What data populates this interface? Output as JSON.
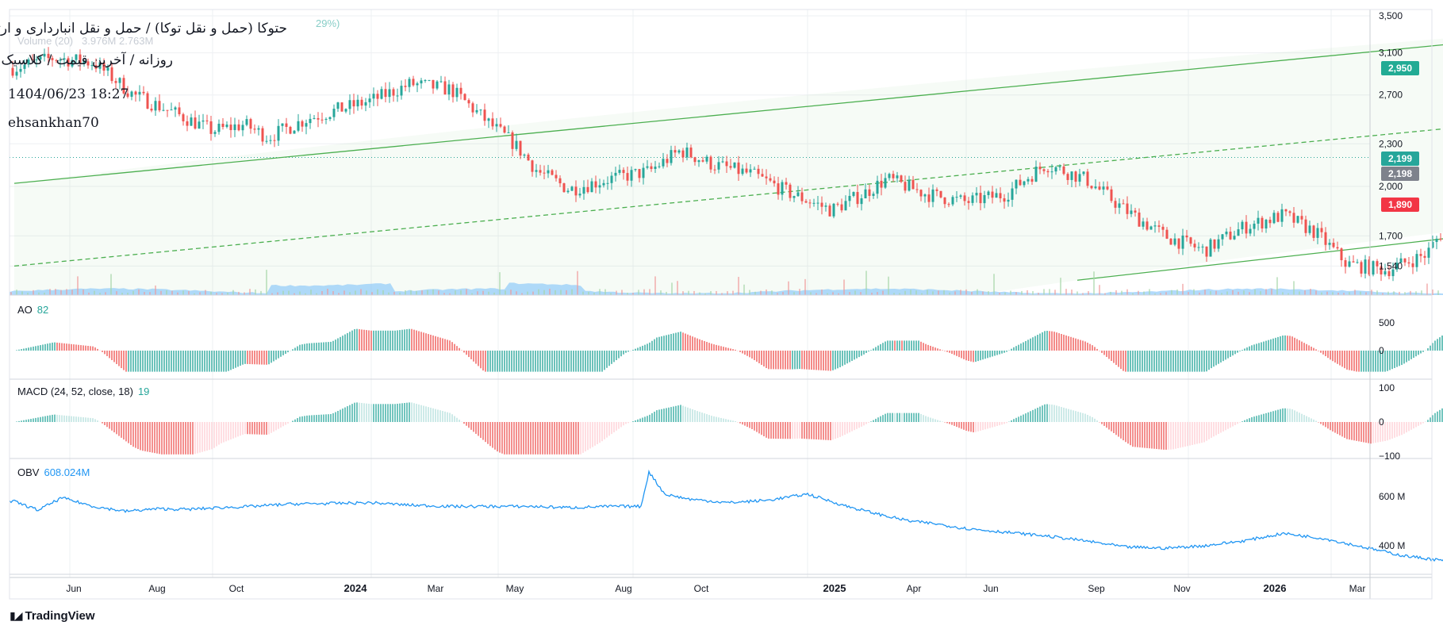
{
  "header": {
    "title": "حتوکا (حمل و نقل توکا) / حمل و نقل انبارداری و ارتباطات",
    "subtitle": "روزانه / آخرین قیمت / کلاسیک",
    "datetime": "1404/06/23 18:27",
    "author": "ehsankhan70",
    "ghost_change": "29%)",
    "ghost_volume_label": "Volume (20)",
    "ghost_volume_values": "3.976M  2.763M"
  },
  "branding": {
    "logo_text": "TradingView",
    "logo_icon": "tradingview-logo-icon"
  },
  "colors": {
    "up": "#26a69a",
    "down": "#ef5350",
    "channel": "#4caf50",
    "obv": "#2196f3",
    "target_zone": "#b2dfdb",
    "stop_zone": "#f8c8cc",
    "tag_target": "#22ab94",
    "tag_last": "#26a69a",
    "tag_prev": "#7e828c",
    "tag_stop": "#f23645"
  },
  "chart_data": [
    {
      "type": "candlestick",
      "title": "حتوکا (حمل و نقل توکا) / حمل و نقل انبارداری و ارتباطات",
      "price_axis": [
        1540,
        1700,
        2000,
        2300,
        2700,
        3100,
        3500
      ],
      "price_axis_labels": [
        "1,540",
        "1,700",
        "2,000",
        "2,300",
        "2,700",
        "3,100",
        "3,500"
      ],
      "time_axis": [
        "Jun",
        "Aug",
        "Oct",
        "2024",
        "Mar",
        "May",
        "Aug",
        "Oct",
        "2025",
        "Apr",
        "Jun",
        "Sep",
        "Nov",
        "2026",
        "Mar"
      ],
      "price_path": {
        "months": [
          0,
          0.5,
          1,
          1.5,
          2,
          2.5,
          2.9,
          3.2,
          3.7,
          4.5,
          5,
          5.5,
          6,
          6.3,
          6.6,
          7,
          7.5,
          8,
          8.4,
          8.8,
          9.3,
          9.8,
          10.3,
          10.7,
          11,
          11.5,
          12,
          12.5,
          13,
          13.5,
          14,
          14.5,
          15,
          15.5,
          16,
          16.4,
          16.8,
          17.3,
          17.8,
          18.2,
          18.7,
          19.2,
          19.6,
          20,
          20.2,
          20.5,
          20.8,
          21.1,
          21.4,
          21.7,
          22,
          22.2,
          22.5,
          22.8,
          23,
          23.3,
          23.6,
          23.9,
          24.1,
          24.4,
          24.8,
          25.2,
          25.6,
          26,
          26.4,
          26.7,
          27,
          27.2
        ],
        "values": [
          2950,
          3050,
          3000,
          2700,
          2550,
          2400,
          2450,
          2350,
          2500,
          2650,
          2800,
          2750,
          2450,
          2300,
          2100,
          1980,
          2050,
          2100,
          2250,
          2150,
          2080,
          1950,
          1850,
          1950,
          2050,
          1950,
          1900,
          1950,
          2150,
          2050,
          1850,
          1700,
          1620,
          1750,
          1820,
          1720,
          1550,
          1520,
          1600,
          1850,
          1950,
          2050,
          2000,
          1900,
          1800,
          1950,
          2100,
          2200,
          2280,
          2350,
          2450,
          2400,
          2300,
          2200,
          2100,
          1950,
          1850,
          2000,
          2100,
          2300,
          2450,
          2400,
          2350,
          2150,
          2200,
          2050,
          2000,
          2199
        ]
      },
      "last_price": 2199,
      "previous_close": 2198,
      "target": 2950,
      "stop": 1890,
      "price_tags": [
        "2,950",
        "2,199",
        "2,198",
        "1,890"
      ],
      "channel": {
        "upper": [
          [
            0,
            2020
          ],
          [
            22,
            3520
          ]
        ],
        "middle": [
          [
            0,
            1540
          ],
          [
            28,
            3100
          ]
        ],
        "lower": [
          [
            13.4,
            1470
          ],
          [
            28,
            2260
          ]
        ]
      },
      "volume_label": "Volume (20)"
    },
    {
      "type": "histogram",
      "name": "AO",
      "label": "AO",
      "value": 82,
      "value_label": "82",
      "y_axis_labels": [
        "500",
        "0"
      ]
    },
    {
      "type": "histogram",
      "name": "MACD (24, 52, close, 18)",
      "label": "MACD (24, 52, close, 18)",
      "value": 19,
      "value_label": "19",
      "y_axis_labels": [
        "100",
        "0",
        "−100"
      ]
    },
    {
      "type": "line",
      "name": "OBV",
      "label": "OBV",
      "value_label": "608.024M",
      "y_axis_labels": [
        "600 M",
        "400 M"
      ],
      "months": [
        0,
        0.3,
        0.6,
        1,
        1.4,
        1.8,
        2.2,
        2.6,
        3,
        3.5,
        4,
        4.5,
        5,
        5.5,
        6,
        6.5,
        7,
        7.5,
        7.9,
        8,
        8.2,
        8.5,
        9,
        9.5,
        10,
        10.5,
        11,
        11.3,
        11.6,
        12,
        12.5,
        13,
        13.5,
        14,
        14.5,
        15,
        15.5,
        16,
        16.5,
        17,
        17.5,
        18,
        18.5,
        19,
        19.4,
        19.8,
        20.2,
        20.6,
        21,
        21.5,
        22,
        22.5,
        23,
        23.5,
        24,
        24.4,
        24.8,
        25.2,
        25.6,
        26,
        26.5,
        27,
        27.2
      ],
      "values": [
        580,
        545,
        595,
        560,
        540,
        550,
        548,
        555,
        560,
        570,
        572,
        575,
        565,
        560,
        560,
        560,
        555,
        560,
        560,
        700,
        610,
        590,
        575,
        585,
        610,
        560,
        520,
        500,
        490,
        470,
        455,
        440,
        420,
        395,
        390,
        400,
        420,
        450,
        430,
        395,
        360,
        340,
        385,
        460,
        475,
        500,
        510,
        505,
        520,
        485,
        470,
        460,
        435,
        425,
        430,
        500,
        560,
        570,
        600,
        640,
        605,
        600,
        608
      ]
    }
  ]
}
